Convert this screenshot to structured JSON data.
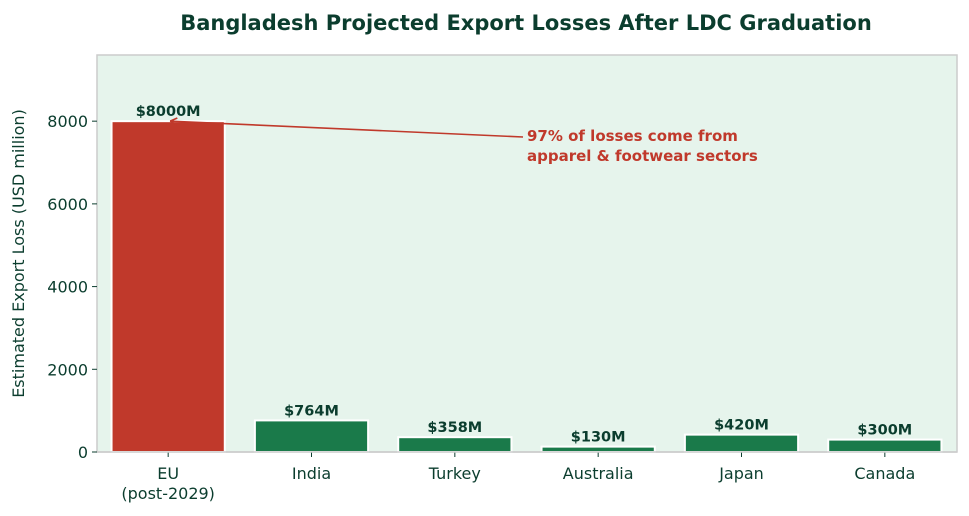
{
  "chart_data": {
    "type": "bar",
    "title": "Bangladesh Projected Export Losses After LDC Graduation",
    "xlabel": "",
    "ylabel": "Estimated Export Loss (USD million)",
    "categories": [
      "EU\n(post-2029)",
      "India",
      "Turkey",
      "Australia",
      "Japan",
      "Canada"
    ],
    "values": [
      8000,
      764,
      358,
      130,
      420,
      300
    ],
    "data_labels": [
      "$8000M",
      "$764M",
      "$358M",
      "$130M",
      "$420M",
      "$300M"
    ],
    "ylim": [
      0,
      9600
    ],
    "yticks": [
      0,
      2000,
      4000,
      6000,
      8000
    ],
    "grid": false,
    "legend": null,
    "annotation": {
      "lines": [
        "97% of losses come from",
        "apparel & footwear sectors"
      ],
      "points_to_category": "EU\n(post-2029)",
      "points_to_value": 8000
    },
    "colors": {
      "highlight_bar": "#c0392b",
      "bar": "#1a7a4a",
      "plot_background": "#e6f4ec",
      "text": "#0b3d2e",
      "annotation": "#c0392b",
      "spine": "#cccccc"
    }
  }
}
